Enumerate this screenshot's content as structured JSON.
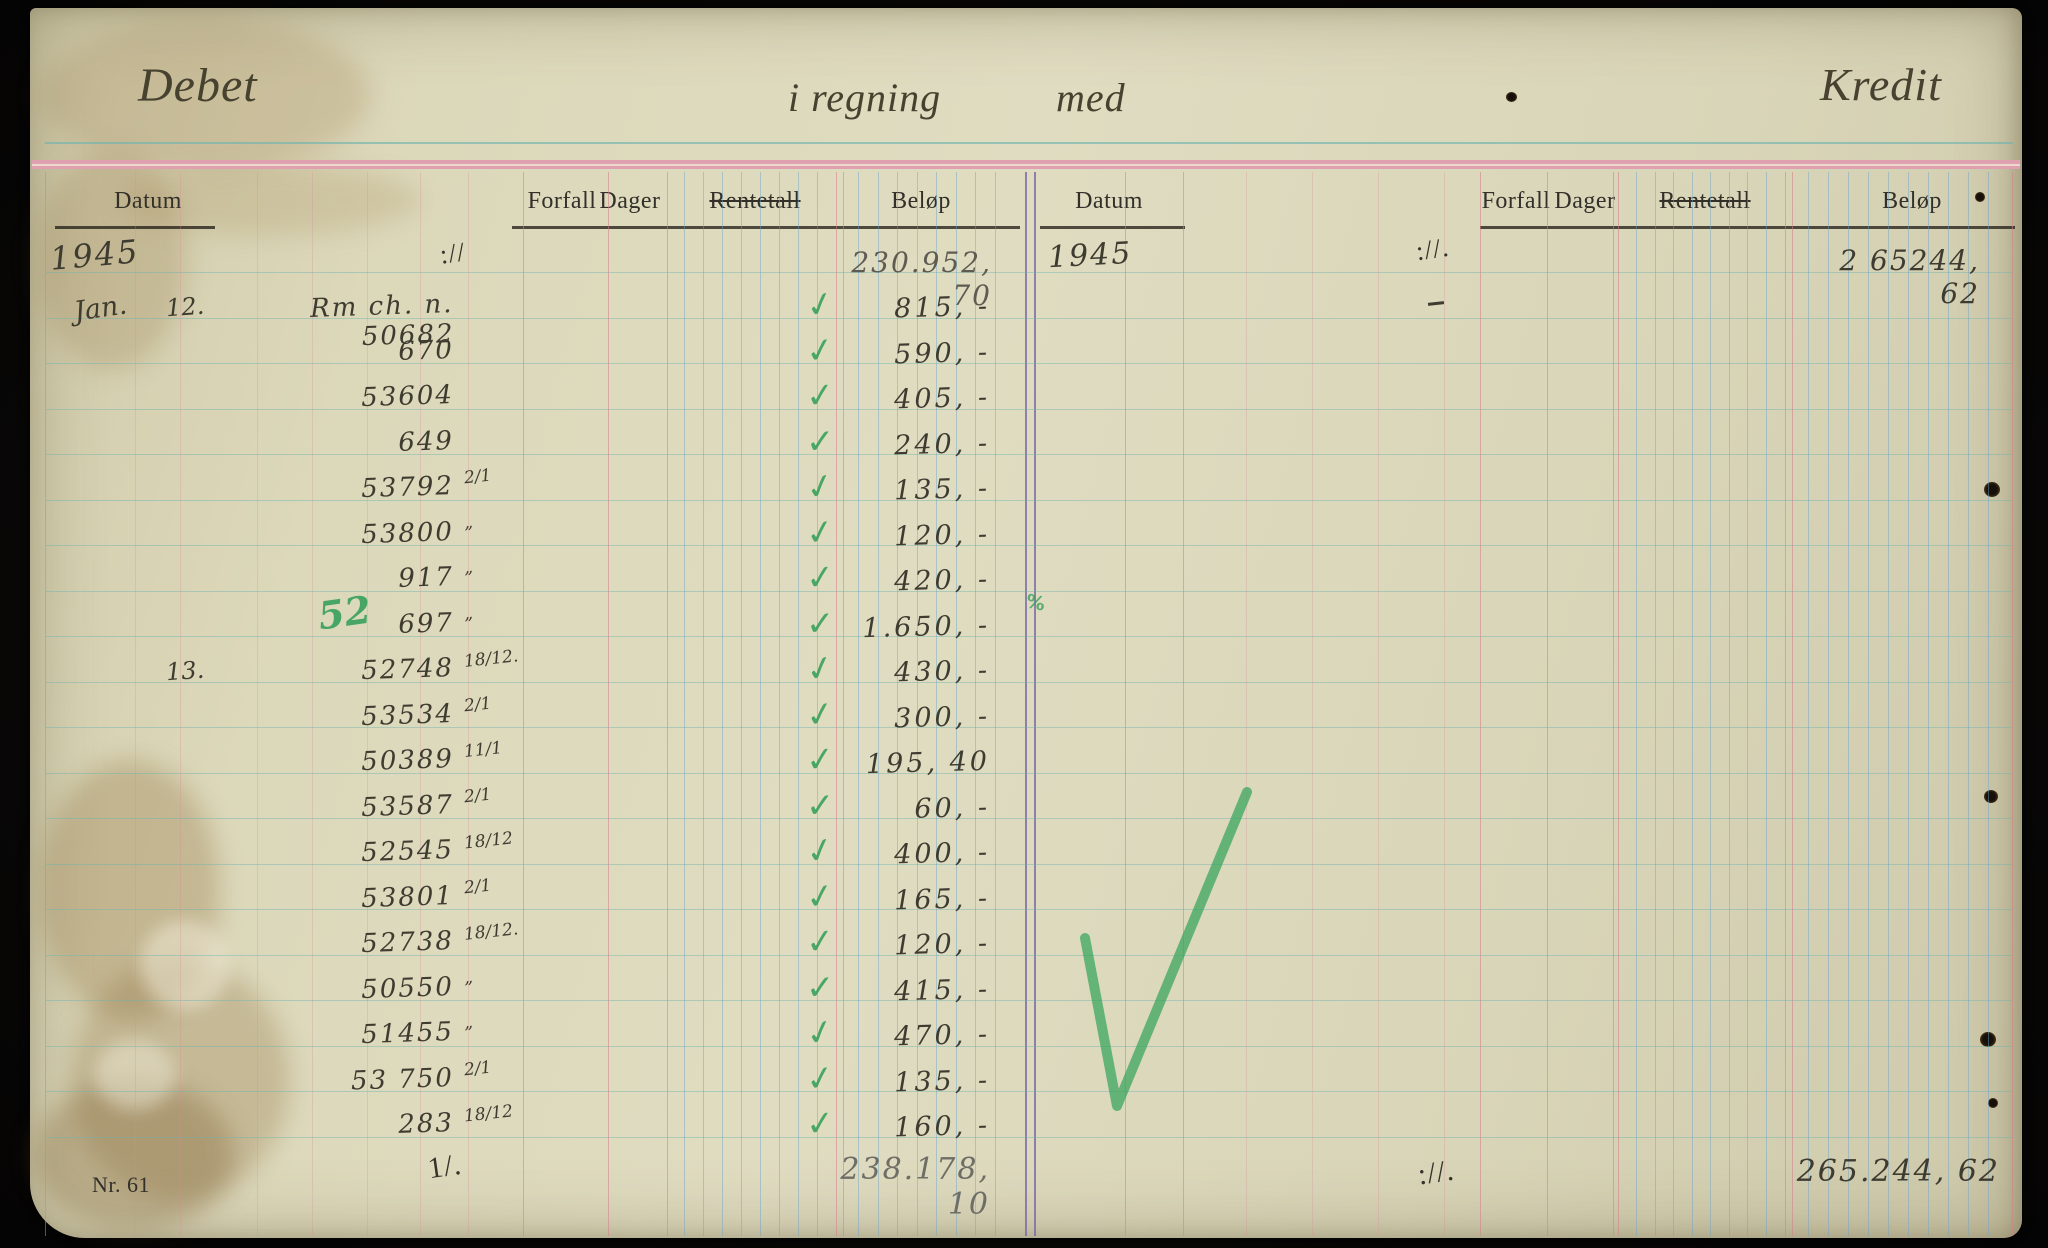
{
  "header": {
    "debet": "Debet",
    "middle_left": "i regning",
    "middle_right": "med",
    "kredit": "Kredit"
  },
  "columns": {
    "datum": "Datum",
    "forfall": "Forfall",
    "dager": "Dager",
    "rentetall": "Rentetall",
    "belop": "Beløp"
  },
  "left_page": {
    "year": "1945",
    "opening_mark": "://",
    "opening_amount": "230.952, 70",
    "rows": [
      {
        "month": "Jan.",
        "day": "12.",
        "desc": "Rm ch. n. 50682",
        "due": "",
        "amount": "815, -"
      },
      {
        "desc": "670",
        "amount": "590, -"
      },
      {
        "desc": "53604",
        "amount": "405, -"
      },
      {
        "desc": "649",
        "amount": "240, -"
      },
      {
        "desc": "53792",
        "due": "2/1",
        "amount": "135, -"
      },
      {
        "desc": "53800",
        "due": "„",
        "amount": "120, -"
      },
      {
        "desc": "917",
        "due": "„",
        "amount": "420, -"
      },
      {
        "desc": "697",
        "due": "„",
        "amount": "1.650, -"
      },
      {
        "day": "13.",
        "desc": "52748",
        "due": "18/12.",
        "amount": "430, -"
      },
      {
        "desc": "53534",
        "due": "2/1",
        "amount": "300, -"
      },
      {
        "desc": "50389",
        "due": "11/1",
        "amount": "195, 40"
      },
      {
        "desc": "53587",
        "due": "2/1",
        "amount": "60, -"
      },
      {
        "desc": "52545",
        "due": "18/12",
        "amount": "400, -"
      },
      {
        "desc": "53801",
        "due": "2/1",
        "amount": "165, -"
      },
      {
        "desc": "52738",
        "due": "18/12.",
        "amount": "120, -"
      },
      {
        "desc": "50550",
        "due": "„",
        "amount": "415, -"
      },
      {
        "desc": "51455",
        "due": "„",
        "amount": "470, -"
      },
      {
        "desc": "53 750",
        "due": "2/1",
        "amount": "135, -"
      },
      {
        "desc": "283",
        "due": "18/12",
        "amount": "160, -"
      }
    ],
    "total_mark": "1/.",
    "total_amount": "238.178, 10"
  },
  "right_page": {
    "year": "1945",
    "opening_mark": "://.",
    "opening_amount": "2 65244, 62",
    "total_mark": "://.",
    "total_amount": "265.244, 62"
  },
  "footer": {
    "nr_label": "Nr. 61"
  },
  "annotations": {
    "green_number": "52",
    "check_symbol": "✓",
    "small_green_mark": "%"
  },
  "colors": {
    "paper": "#dcd8ba",
    "ink": "#3e3b30",
    "pencil": "#6f6e66",
    "green": "#2f9e55",
    "rule_pink": "#dfa0af",
    "rule_cyan": "#6eb4af",
    "rule_purple": "#7869a5"
  }
}
